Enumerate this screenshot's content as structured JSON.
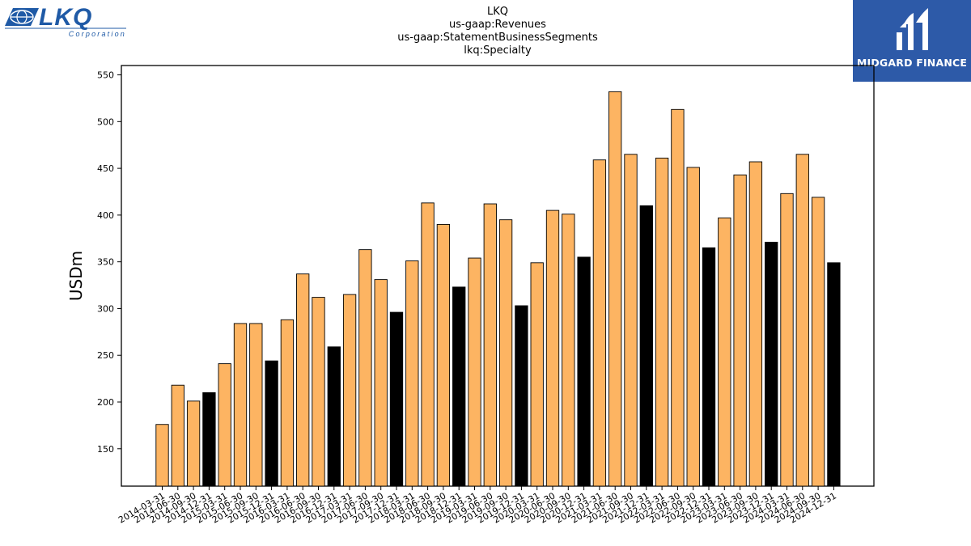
{
  "branding": {
    "left_logo_text": "LKQ",
    "left_logo_subtext": "Corporation",
    "right_logo_text": "MIDGARD FINANCE",
    "colors": {
      "lkq_blue": "#1f5aa6",
      "midgard_bg": "#2d5aa8"
    }
  },
  "chart_data": {
    "type": "bar",
    "title": [
      "LKQ",
      "us-gaap:Revenues",
      "us-gaap:StatementBusinessSegments",
      "lkq:Specialty"
    ],
    "xlabel": "",
    "ylabel": "USDm",
    "ylim": [
      110,
      560
    ],
    "yticks": [
      150,
      200,
      250,
      300,
      350,
      400,
      450,
      500,
      550
    ],
    "grid": false,
    "colors": {
      "quarter": "#fdb462",
      "year_end": "#000000",
      "edge": "#000000"
    },
    "categories": [
      "2014-03-31",
      "2014-06-30",
      "2014-09-30",
      "2014-12-31",
      "2015-03-31",
      "2015-06-30",
      "2015-09-30",
      "2015-12-31",
      "2016-03-31",
      "2016-06-30",
      "2016-09-30",
      "2016-12-31",
      "2017-03-31",
      "2017-06-30",
      "2017-09-30",
      "2017-12-31",
      "2018-03-31",
      "2018-06-30",
      "2018-09-30",
      "2018-12-31",
      "2019-03-31",
      "2019-06-30",
      "2019-09-30",
      "2019-12-31",
      "2020-03-31",
      "2020-06-30",
      "2020-09-30",
      "2020-12-31",
      "2021-03-31",
      "2021-06-30",
      "2021-09-30",
      "2021-12-31",
      "2022-03-31",
      "2022-06-30",
      "2022-09-30",
      "2022-12-31",
      "2023-03-31",
      "2023-06-30",
      "2023-09-30",
      "2023-12-31",
      "2024-03-31",
      "2024-06-30",
      "2024-09-30",
      "2024-12-31"
    ],
    "values": [
      176,
      218,
      201,
      210,
      241,
      284,
      284,
      244,
      288,
      337,
      312,
      259,
      315,
      363,
      331,
      296,
      351,
      413,
      390,
      323,
      354,
      412,
      395,
      303,
      349,
      405,
      401,
      355,
      459,
      532,
      465,
      410,
      461,
      513,
      451,
      365,
      397,
      443,
      457,
      371,
      423,
      465,
      419,
      349
    ]
  }
}
